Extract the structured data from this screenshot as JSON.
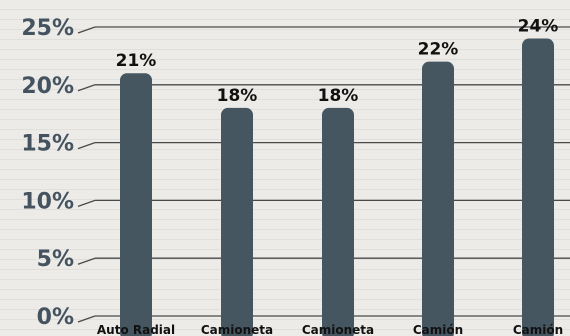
{
  "colors": {
    "bar": "#465661",
    "grid": "#4a4a4a",
    "tick_text": "#44535f",
    "label_text": "#111111",
    "background": "#ecebe8"
  },
  "chart_data": {
    "type": "bar",
    "title": "",
    "xlabel": "",
    "ylabel": "",
    "categories": [
      "Auto Radial",
      "Camioneta",
      "Camioneta",
      "Camión",
      "Camión"
    ],
    "values": [
      21,
      18,
      18,
      22,
      24
    ],
    "value_labels": [
      "21%",
      "18%",
      "18%",
      "22%",
      "24%"
    ],
    "ylim": [
      0,
      25
    ],
    "yticks": [
      0,
      5,
      10,
      15,
      20,
      25
    ],
    "ytick_labels": [
      "0%",
      "5%",
      "10%",
      "15%",
      "20%",
      "25%"
    ],
    "grid": true,
    "legend": "none"
  }
}
